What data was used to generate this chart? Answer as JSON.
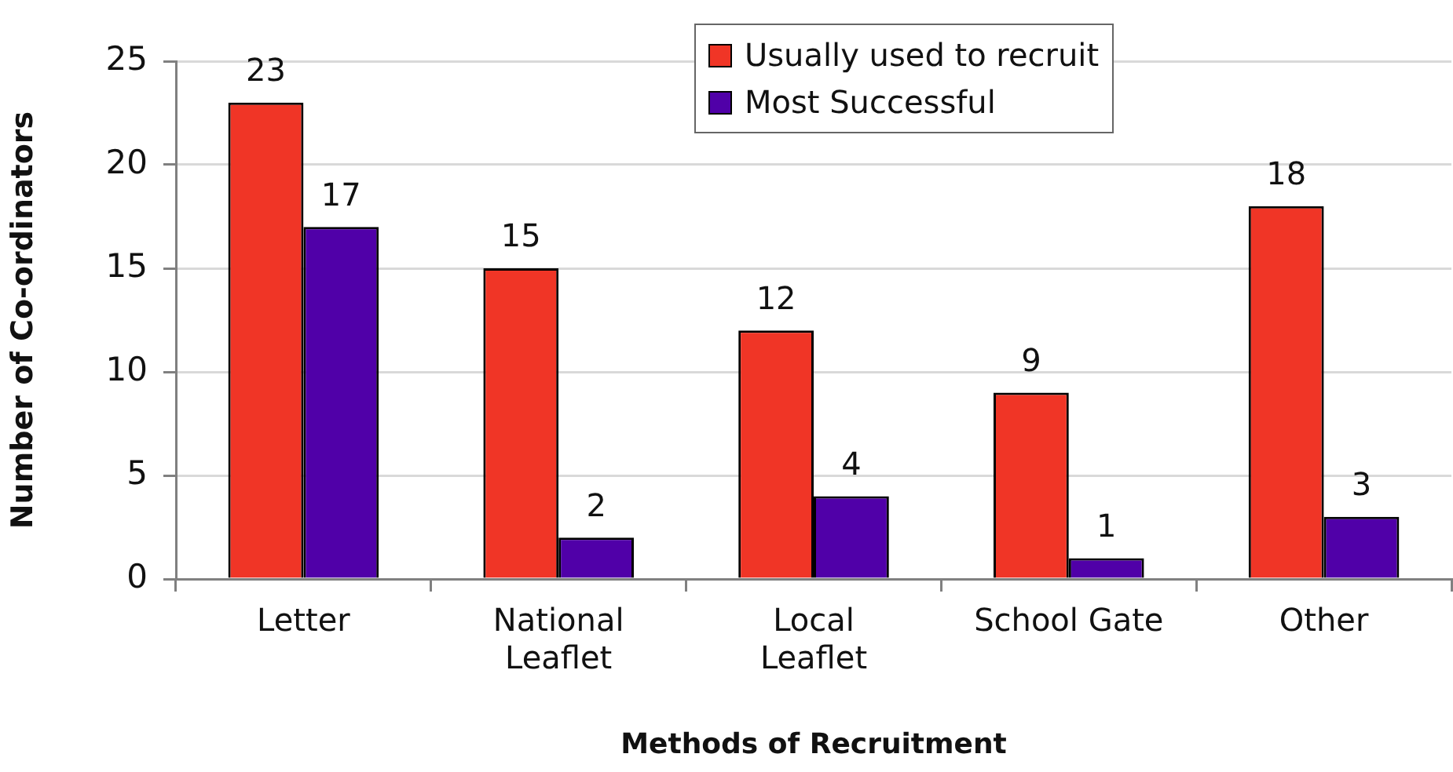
{
  "chart_data": {
    "type": "bar",
    "xlabel": "Methods of Recruitment",
    "ylabel": "Number of Co-ordinators",
    "categories": [
      "Letter",
      "National Leaflet",
      "Local Leaflet",
      "School Gate",
      "Other"
    ],
    "series": [
      {
        "name": "Usually used to recruit",
        "color": "#f03526",
        "values": [
          23,
          15,
          12,
          9,
          18
        ]
      },
      {
        "name": "Most Successful",
        "color": "#5000a8",
        "values": [
          17,
          2,
          4,
          1,
          3
        ]
      }
    ],
    "ylim": [
      0,
      25
    ],
    "yticks": [
      0,
      5,
      10,
      15,
      20,
      25
    ],
    "grid": "y",
    "legend": "top",
    "data_labels": true
  }
}
